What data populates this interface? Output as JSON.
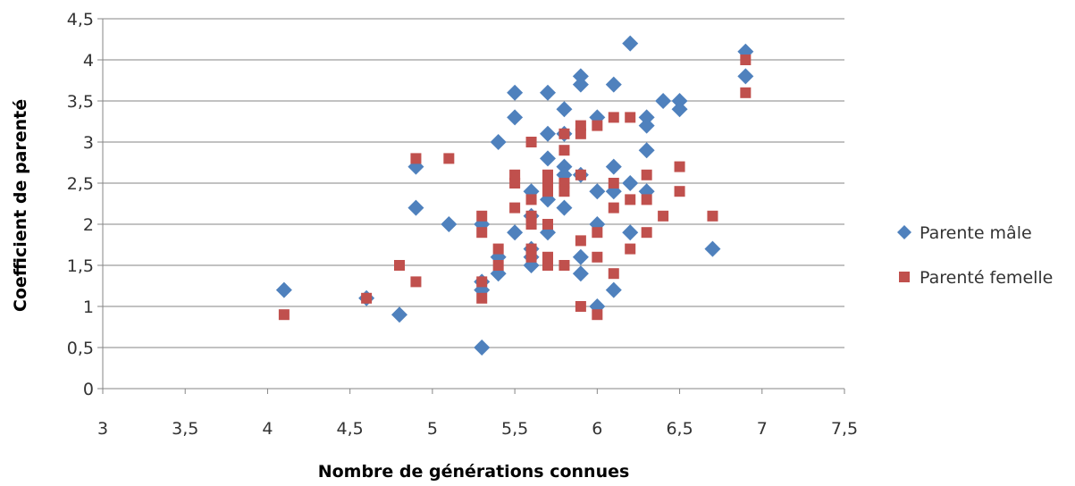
{
  "chart_data": {
    "type": "scatter",
    "title": "",
    "xlabel": "Nombre de générations connues",
    "ylabel": "Coefficient de parenté",
    "xlim": [
      3,
      7.5
    ],
    "ylim": [
      0,
      4.5
    ],
    "x_ticks": [
      "3",
      "3,5",
      "4",
      "4,5",
      "5",
      "5,5",
      "6",
      "6,5",
      "7",
      "7,5"
    ],
    "y_ticks": [
      "0",
      "0,5",
      "1",
      "1,5",
      "2",
      "2,5",
      "3",
      "3,5",
      "4",
      "4,5"
    ],
    "grid": "horizontal",
    "legend_position": "right",
    "series": [
      {
        "name": "Parente mâle",
        "marker": "diamond",
        "color": "#4F81BD",
        "points": [
          [
            4.1,
            1.2
          ],
          [
            4.6,
            1.1
          ],
          [
            4.8,
            0.9
          ],
          [
            4.9,
            2.7
          ],
          [
            4.9,
            2.2
          ],
          [
            5.1,
            2.0
          ],
          [
            5.3,
            2.0
          ],
          [
            5.3,
            1.3
          ],
          [
            5.3,
            1.2
          ],
          [
            5.3,
            0.5
          ],
          [
            5.4,
            3.0
          ],
          [
            5.4,
            1.6
          ],
          [
            5.4,
            1.4
          ],
          [
            5.5,
            3.6
          ],
          [
            5.5,
            3.3
          ],
          [
            5.5,
            1.9
          ],
          [
            5.6,
            2.4
          ],
          [
            5.6,
            2.1
          ],
          [
            5.6,
            1.7
          ],
          [
            5.6,
            1.6
          ],
          [
            5.6,
            1.5
          ],
          [
            5.7,
            3.6
          ],
          [
            5.7,
            3.1
          ],
          [
            5.7,
            2.8
          ],
          [
            5.7,
            2.3
          ],
          [
            5.7,
            1.9
          ],
          [
            5.8,
            3.4
          ],
          [
            5.8,
            3.1
          ],
          [
            5.8,
            2.7
          ],
          [
            5.8,
            2.6
          ],
          [
            5.8,
            2.2
          ],
          [
            5.9,
            3.8
          ],
          [
            5.9,
            3.7
          ],
          [
            5.9,
            2.6
          ],
          [
            5.9,
            1.6
          ],
          [
            5.9,
            1.4
          ],
          [
            6.0,
            3.3
          ],
          [
            6.0,
            2.4
          ],
          [
            6.0,
            2.0
          ],
          [
            6.0,
            1.0
          ],
          [
            6.1,
            3.7
          ],
          [
            6.1,
            2.7
          ],
          [
            6.1,
            2.4
          ],
          [
            6.1,
            1.2
          ],
          [
            6.2,
            4.2
          ],
          [
            6.2,
            2.5
          ],
          [
            6.2,
            1.9
          ],
          [
            6.3,
            3.3
          ],
          [
            6.3,
            3.2
          ],
          [
            6.3,
            2.9
          ],
          [
            6.3,
            2.4
          ],
          [
            6.4,
            3.5
          ],
          [
            6.5,
            3.5
          ],
          [
            6.5,
            3.4
          ],
          [
            6.7,
            1.7
          ],
          [
            6.9,
            4.1
          ],
          [
            6.9,
            3.8
          ]
        ]
      },
      {
        "name": "Parenté femelle",
        "marker": "square",
        "color": "#C0504D",
        "points": [
          [
            4.1,
            0.9
          ],
          [
            4.6,
            1.1
          ],
          [
            4.8,
            1.5
          ],
          [
            4.9,
            2.8
          ],
          [
            4.9,
            1.3
          ],
          [
            5.1,
            2.8
          ],
          [
            5.3,
            2.1
          ],
          [
            5.3,
            1.9
          ],
          [
            5.3,
            1.3
          ],
          [
            5.3,
            1.1
          ],
          [
            5.4,
            1.7
          ],
          [
            5.4,
            1.5
          ],
          [
            5.5,
            2.6
          ],
          [
            5.5,
            2.5
          ],
          [
            5.5,
            2.2
          ],
          [
            5.6,
            3.0
          ],
          [
            5.6,
            2.3
          ],
          [
            5.6,
            2.1
          ],
          [
            5.6,
            2.0
          ],
          [
            5.6,
            1.7
          ],
          [
            5.6,
            1.6
          ],
          [
            5.7,
            2.6
          ],
          [
            5.7,
            2.5
          ],
          [
            5.7,
            2.4
          ],
          [
            5.7,
            2.0
          ],
          [
            5.7,
            1.6
          ],
          [
            5.7,
            1.5
          ],
          [
            5.8,
            3.1
          ],
          [
            5.8,
            2.9
          ],
          [
            5.8,
            2.5
          ],
          [
            5.8,
            2.4
          ],
          [
            5.8,
            1.5
          ],
          [
            5.9,
            3.2
          ],
          [
            5.9,
            3.1
          ],
          [
            5.9,
            2.6
          ],
          [
            5.9,
            1.8
          ],
          [
            5.9,
            1.0
          ],
          [
            6.0,
            3.2
          ],
          [
            6.0,
            1.9
          ],
          [
            6.0,
            1.6
          ],
          [
            6.0,
            0.9
          ],
          [
            6.1,
            3.3
          ],
          [
            6.1,
            2.5
          ],
          [
            6.1,
            2.2
          ],
          [
            6.1,
            1.4
          ],
          [
            6.2,
            3.3
          ],
          [
            6.2,
            2.3
          ],
          [
            6.2,
            1.7
          ],
          [
            6.3,
            2.6
          ],
          [
            6.3,
            2.3
          ],
          [
            6.3,
            1.9
          ],
          [
            6.4,
            2.1
          ],
          [
            6.5,
            2.7
          ],
          [
            6.5,
            2.4
          ],
          [
            6.7,
            2.1
          ],
          [
            6.9,
            4.0
          ],
          [
            6.9,
            3.6
          ]
        ]
      }
    ]
  }
}
